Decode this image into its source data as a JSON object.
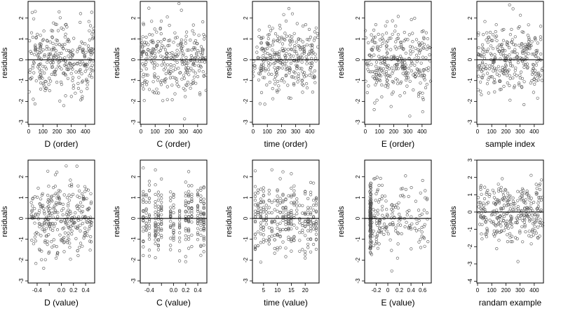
{
  "chart_data": [
    {
      "type": "scatter",
      "xlabel": "D (order)",
      "ylabel": "residuals",
      "xlim": [
        -5,
        465
      ],
      "ylim": [
        -3.1,
        2.8
      ],
      "xticks": [
        0,
        100,
        200,
        300,
        400
      ],
      "yticks": [
        -3,
        -2,
        -1,
        0,
        1,
        2
      ],
      "hline": 0,
      "n": 300,
      "xmode": "order"
    },
    {
      "type": "scatter",
      "xlabel": "C (order)",
      "ylabel": "residuals",
      "xlim": [
        -5,
        465
      ],
      "ylim": [
        -3.1,
        2.8
      ],
      "xticks": [
        0,
        100,
        200,
        300,
        400
      ],
      "yticks": [
        -3,
        -2,
        -1,
        0,
        1,
        2
      ],
      "hline": 0,
      "n": 300,
      "xmode": "order"
    },
    {
      "type": "scatter",
      "xlabel": "time (order)",
      "ylabel": "residuals",
      "xlim": [
        -5,
        465
      ],
      "ylim": [
        -3.1,
        2.8
      ],
      "xticks": [
        0,
        100,
        200,
        300,
        400
      ],
      "yticks": [
        -3,
        -2,
        -1,
        0,
        1,
        2
      ],
      "hline": 0,
      "n": 300,
      "xmode": "order"
    },
    {
      "type": "scatter",
      "xlabel": "E (order)",
      "ylabel": "residuals",
      "xlim": [
        -5,
        465
      ],
      "ylim": [
        -3.1,
        2.8
      ],
      "xticks": [
        0,
        100,
        200,
        300,
        400
      ],
      "yticks": [
        -3,
        -2,
        -1,
        0,
        1,
        2
      ],
      "hline": 0,
      "n": 300,
      "xmode": "order"
    },
    {
      "type": "scatter",
      "xlabel": "sample index",
      "ylabel": "residuals",
      "xlim": [
        -5,
        465
      ],
      "ylim": [
        -3.1,
        2.8
      ],
      "xticks": [
        0,
        100,
        200,
        300,
        400
      ],
      "yticks": [
        -3,
        -2,
        -1,
        0,
        1,
        2
      ],
      "hline": 0,
      "n": 300,
      "xmode": "order"
    },
    {
      "type": "scatter",
      "xlabel": "D (value)",
      "ylabel": "residuals",
      "xlim": [
        -0.55,
        0.55
      ],
      "ylim": [
        -3.1,
        2.8
      ],
      "xticks": [
        -0.4,
        -0.2,
        0.0,
        0.2,
        0.4
      ],
      "xticklabels": [
        "-0.4",
        "",
        "0.0",
        "0.2",
        "0.4"
      ],
      "yticks": [
        -3,
        -2,
        -1,
        0,
        1,
        2
      ],
      "hline": 0,
      "n": 300,
      "xmode": "spread"
    },
    {
      "type": "scatter",
      "xlabel": "C (value)",
      "ylabel": "residuals",
      "xlim": [
        -0.55,
        0.55
      ],
      "ylim": [
        -3.1,
        2.8
      ],
      "xticks": [
        -0.4,
        -0.2,
        0.0,
        0.2,
        0.4
      ],
      "xticklabels": [
        "-0.4",
        "",
        "0.0",
        "0.2",
        "0.4"
      ],
      "yticks": [
        -3,
        -2,
        -1,
        0,
        1,
        2
      ],
      "hline": 0,
      "n": 300,
      "xmode": "discrete",
      "levels": [
        -0.5,
        -0.45,
        -0.4,
        -0.3,
        -0.25,
        -0.2,
        -0.05,
        0.0,
        0.1,
        0.2,
        0.25,
        0.3,
        0.4,
        0.45,
        0.5
      ]
    },
    {
      "type": "scatter",
      "xlabel": "time (value)",
      "ylabel": "residuals",
      "xlim": [
        1,
        25
      ],
      "ylim": [
        -3.1,
        2.8
      ],
      "xticks": [
        5,
        10,
        15,
        20
      ],
      "yticks": [
        -3,
        -2,
        -1,
        0,
        1,
        2
      ],
      "hline": 0,
      "n": 300,
      "xmode": "discrete",
      "levels": [
        2,
        3,
        4,
        5,
        6,
        7,
        8,
        9,
        10,
        11,
        12,
        13,
        14,
        15,
        16,
        17,
        18,
        19,
        20,
        21,
        22,
        23,
        24
      ]
    },
    {
      "type": "scatter",
      "xlabel": "E (value)",
      "ylabel": "residuals",
      "xlim": [
        -0.4,
        0.75
      ],
      "ylim": [
        -3.1,
        2.8
      ],
      "xticks": [
        -0.2,
        0.0,
        0.2,
        0.4,
        0.6
      ],
      "yticks": [
        -3,
        -2,
        -1,
        0,
        1,
        2
      ],
      "hline": 0,
      "n": 300,
      "xmode": "skew"
    },
    {
      "type": "scatter",
      "xlabel": "randam example",
      "ylabel": "residuals",
      "xlim": [
        -5,
        465
      ],
      "ylim": [
        -4.1,
        3.0
      ],
      "xticks": [
        0,
        100,
        200,
        300,
        400
      ],
      "yticks": [
        -4,
        -3,
        -2,
        -1,
        0,
        1,
        2,
        3
      ],
      "hline": 0,
      "n": 300,
      "xmode": "order"
    }
  ]
}
